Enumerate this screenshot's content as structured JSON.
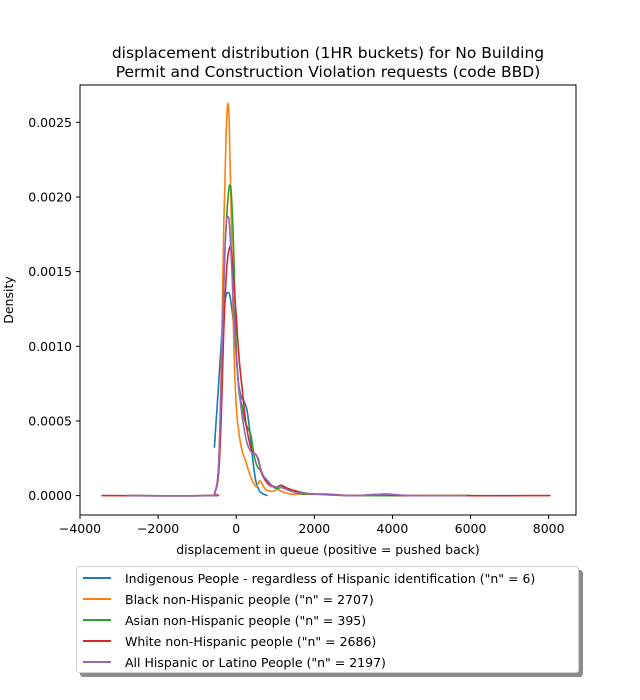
{
  "chart_data": {
    "type": "line",
    "title": "displacement distribution (1HR buckets) for No Building\nPermit and Construction Violation requests (code BBD)",
    "xlabel": "displacement in queue (positive = pushed back)",
    "ylabel": "Density",
    "xlim": [
      -4000,
      8700
    ],
    "ylim": [
      -0.00013,
      0.00275
    ],
    "xticks": [
      -4000,
      -2000,
      0,
      2000,
      4000,
      6000,
      8000
    ],
    "xtick_labels": [
      "−4000",
      "−2000",
      "0",
      "2000",
      "4000",
      "6000",
      "8000"
    ],
    "yticks": [
      0.0,
      0.0005,
      0.001,
      0.0015,
      0.002,
      0.0025
    ],
    "ytick_labels": [
      "0.0000",
      "0.0005",
      "0.0010",
      "0.0015",
      "0.0020",
      "0.0025"
    ],
    "legend_position": "below",
    "series": [
      {
        "name": "Indigenous People - regardless of Hispanic identification (\"n\" = 6)",
        "color": "#1f77b4",
        "points": [
          [
            -560,
            0.00032
          ],
          [
            -450,
            0.00075
          ],
          [
            -350,
            0.00115
          ],
          [
            -270,
            0.00133
          ],
          [
            -200,
            0.00136
          ],
          [
            -150,
            0.00132
          ],
          [
            -80,
            0.00118
          ],
          [
            0,
            0.00095
          ],
          [
            60,
            0.00075
          ],
          [
            130,
            0.00066
          ],
          [
            200,
            0.00063
          ],
          [
            270,
            0.00058
          ],
          [
            340,
            0.00045
          ],
          [
            420,
            0.00025
          ],
          [
            500,
            0.0001
          ],
          [
            600,
            3e-05
          ],
          [
            700,
            1e-05
          ],
          [
            800,
            0.0
          ]
        ]
      },
      {
        "name": "Black non-Hispanic people (\"n\" = 2707)",
        "color": "#ff7f0e",
        "points": [
          [
            -2800,
            0.0
          ],
          [
            -700,
            0.0
          ],
          [
            -550,
            2e-05
          ],
          [
            -450,
            0.0002
          ],
          [
            -380,
            0.0009
          ],
          [
            -320,
            0.0018
          ],
          [
            -260,
            0.0024
          ],
          [
            -220,
            0.00262
          ],
          [
            -180,
            0.0025
          ],
          [
            -130,
            0.0019
          ],
          [
            -70,
            0.0011
          ],
          [
            0,
            0.0006
          ],
          [
            80,
            0.0004
          ],
          [
            150,
            0.0003
          ],
          [
            230,
            0.00024
          ],
          [
            300,
            0.00018
          ],
          [
            380,
            0.00012
          ],
          [
            450,
            8e-05
          ],
          [
            520,
            6e-05
          ],
          [
            600,
            0.0001
          ],
          [
            680,
            7e-05
          ],
          [
            760,
            4e-05
          ],
          [
            850,
            3e-05
          ],
          [
            950,
            3e-05
          ],
          [
            1050,
            4e-05
          ],
          [
            1150,
            3e-05
          ],
          [
            1250,
            2e-05
          ],
          [
            1400,
            1e-05
          ],
          [
            1600,
            1e-05
          ],
          [
            2000,
            1e-05
          ],
          [
            3000,
            0.0
          ],
          [
            6000,
            0.0
          ]
        ]
      },
      {
        "name": "Asian non-Hispanic people (\"n\" = 395)",
        "color": "#2ca02c",
        "points": [
          [
            -2700,
            0.0
          ],
          [
            -700,
            0.0
          ],
          [
            -550,
            2e-05
          ],
          [
            -450,
            0.0002
          ],
          [
            -380,
            0.0008
          ],
          [
            -320,
            0.0014
          ],
          [
            -260,
            0.0018
          ],
          [
            -200,
            0.00202
          ],
          [
            -160,
            0.00208
          ],
          [
            -120,
            0.002
          ],
          [
            -60,
            0.0016
          ],
          [
            0,
            0.001
          ],
          [
            70,
            0.0007
          ],
          [
            150,
            0.0006
          ],
          [
            220,
            0.0005
          ],
          [
            300,
            0.00045
          ],
          [
            380,
            0.0004
          ],
          [
            450,
            0.00028
          ],
          [
            530,
            0.0002
          ],
          [
            620,
            0.00017
          ],
          [
            700,
            0.00013
          ],
          [
            800,
            0.0001
          ],
          [
            900,
            7e-05
          ],
          [
            1000,
            5e-05
          ],
          [
            1100,
            5e-05
          ],
          [
            1200,
            6e-05
          ],
          [
            1300,
            5e-05
          ],
          [
            1400,
            4e-05
          ],
          [
            1550,
            2e-05
          ],
          [
            1700,
            1e-05
          ],
          [
            2000,
            1e-05
          ],
          [
            3000,
            0.0
          ],
          [
            6000,
            0.0
          ]
        ]
      },
      {
        "name": "White non-Hispanic people (\"n\" = 2686)",
        "color": "#d62728",
        "points": [
          [
            -3450,
            0.0
          ],
          [
            -700,
            0.0
          ],
          [
            -550,
            2e-05
          ],
          [
            -450,
            0.00015
          ],
          [
            -380,
            0.00055
          ],
          [
            -320,
            0.0011
          ],
          [
            -250,
            0.0015
          ],
          [
            -190,
            0.00164
          ],
          [
            -130,
            0.00166
          ],
          [
            -80,
            0.0015
          ],
          [
            0,
            0.0012
          ],
          [
            80,
            0.0009
          ],
          [
            160,
            0.0007
          ],
          [
            240,
            0.0005
          ],
          [
            320,
            0.00038
          ],
          [
            400,
            0.0003
          ],
          [
            480,
            0.00028
          ],
          [
            560,
            0.00025
          ],
          [
            650,
            0.00015
          ],
          [
            750,
            0.0001
          ],
          [
            850,
            7e-05
          ],
          [
            950,
            6e-05
          ],
          [
            1050,
            6e-05
          ],
          [
            1150,
            7e-05
          ],
          [
            1230,
            6e-05
          ],
          [
            1300,
            5e-05
          ],
          [
            1400,
            4e-05
          ],
          [
            1550,
            3e-05
          ],
          [
            1700,
            2e-05
          ],
          [
            1900,
            1e-05
          ],
          [
            2300,
            1e-05
          ],
          [
            3000,
            0.0
          ],
          [
            3800,
            1e-05
          ],
          [
            4300,
            0.0
          ],
          [
            8050,
            0.0
          ]
        ]
      },
      {
        "name": "All Hispanic or Latino People (\"n\" = 2197)",
        "color": "#9467bd",
        "points": [
          [
            -2800,
            0.0
          ],
          [
            -700,
            0.0
          ],
          [
            -550,
            2e-05
          ],
          [
            -450,
            0.0002
          ],
          [
            -380,
            0.0008
          ],
          [
            -320,
            0.0014
          ],
          [
            -260,
            0.0018
          ],
          [
            -210,
            0.00187
          ],
          [
            -170,
            0.0018
          ],
          [
            -110,
            0.0015
          ],
          [
            -40,
            0.0011
          ],
          [
            40,
            0.0008
          ],
          [
            120,
            0.0006
          ],
          [
            200,
            0.00045
          ],
          [
            280,
            0.00035
          ],
          [
            360,
            0.0003
          ],
          [
            440,
            0.00028
          ],
          [
            520,
            0.00027
          ],
          [
            600,
            0.0002
          ],
          [
            700,
            0.00013
          ],
          [
            800,
            0.0001
          ],
          [
            900,
            7e-05
          ],
          [
            1000,
            6e-05
          ],
          [
            1100,
            6e-05
          ],
          [
            1200,
            5e-05
          ],
          [
            1300,
            4e-05
          ],
          [
            1400,
            3e-05
          ],
          [
            1550,
            2e-05
          ],
          [
            1700,
            2e-05
          ],
          [
            2000,
            1e-05
          ],
          [
            3000,
            0.0
          ],
          [
            3800,
            1e-05
          ],
          [
            4500,
            0.0
          ],
          [
            5900,
            0.0
          ]
        ]
      }
    ]
  }
}
